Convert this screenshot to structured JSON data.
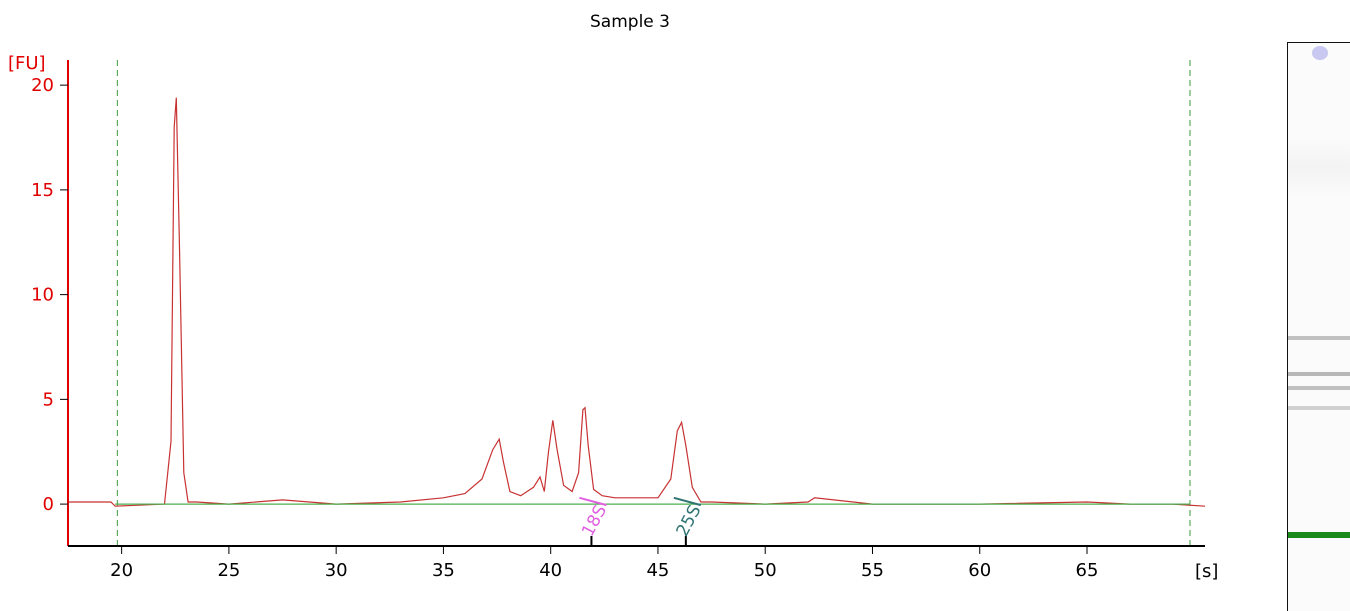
{
  "chart_data": {
    "type": "line",
    "title": "Sample 3",
    "ylabel": "[FU]",
    "xlabel": "[s]",
    "xlim": [
      17.5,
      70.5
    ],
    "ylim": [
      -2.0,
      21.2
    ],
    "x_ticks": [
      20,
      25,
      30,
      35,
      40,
      45,
      50,
      55,
      60,
      65
    ],
    "y_ticks": [
      0,
      5,
      10,
      15,
      20
    ],
    "grid": false,
    "axis_color": "#e00000",
    "series": [
      {
        "color": "#c83232",
        "x": [
          17.5,
          19.5,
          19.7,
          22.0,
          22.3,
          22.45,
          22.55,
          22.7,
          22.9,
          23.1,
          23.5,
          25.0,
          27.5,
          30.0,
          33.0,
          35.0,
          36.0,
          36.8,
          37.3,
          37.6,
          37.8,
          38.1,
          38.6,
          39.2,
          39.5,
          39.7,
          39.9,
          40.1,
          40.3,
          40.6,
          41.0,
          41.3,
          41.5,
          41.6,
          41.75,
          42.0,
          42.4,
          43.0,
          44.0,
          45.0,
          45.6,
          45.9,
          46.1,
          46.3,
          46.6,
          47.0,
          47.5,
          50.0,
          52.0,
          52.3,
          55.0,
          60.0,
          65.0,
          67.0,
          69.0,
          70.5
        ],
        "y": [
          0.1,
          0.1,
          -0.1,
          0.0,
          3.0,
          18.0,
          19.4,
          12.0,
          1.5,
          0.1,
          0.1,
          0.0,
          0.2,
          0.0,
          0.1,
          0.3,
          0.5,
          1.2,
          2.6,
          3.1,
          2.0,
          0.6,
          0.4,
          0.8,
          1.3,
          0.6,
          2.5,
          4.0,
          2.6,
          0.9,
          0.6,
          1.5,
          4.5,
          4.6,
          2.8,
          0.7,
          0.4,
          0.3,
          0.3,
          0.3,
          1.2,
          3.5,
          3.9,
          2.8,
          0.8,
          0.1,
          0.1,
          0.0,
          0.1,
          0.3,
          0.0,
          0.0,
          0.1,
          0.0,
          0.0,
          -0.1
        ]
      },
      {
        "color": "#4caf50",
        "x": [
          19.7,
          69.8
        ],
        "y": [
          0.0,
          0.0
        ]
      }
    ],
    "markers": [
      {
        "label": "18S",
        "x": 41.9,
        "color": "#e060e0"
      },
      {
        "label": "25S",
        "x": 46.3,
        "color": "#2f7373"
      }
    ],
    "dashed_lines_x": [
      19.8,
      69.8
    ],
    "gel_bands": [
      {
        "level": 0.35,
        "color": "#555555"
      },
      {
        "level": 0.4,
        "color": "#555555"
      },
      {
        "level": 0.35,
        "color": "#555555"
      },
      {
        "level": 0.25,
        "color": "#555555"
      },
      {
        "level": 1.0,
        "color": "#1a8a1a"
      }
    ]
  }
}
